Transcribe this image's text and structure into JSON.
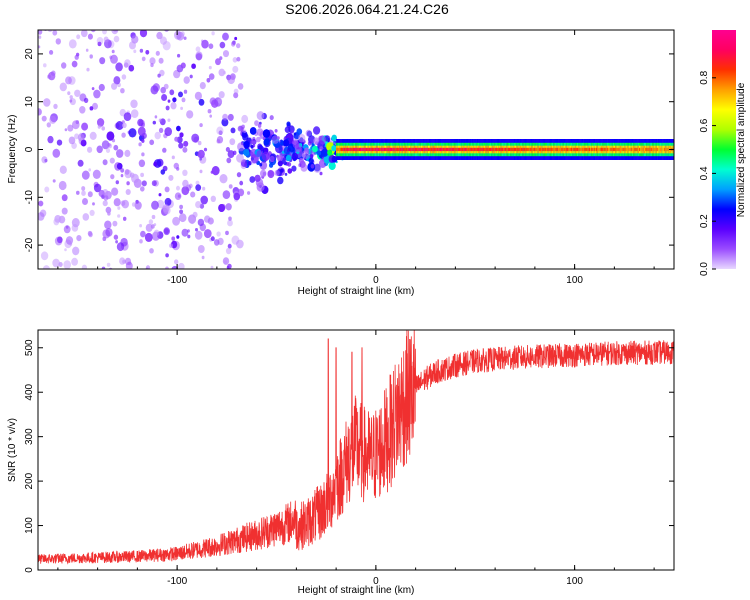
{
  "title": "S206.2026.064.21.24.C26",
  "chart_data": [
    {
      "type": "heatmap",
      "xlabel": "Height of straight line (km)",
      "ylabel": "Frequency (Hz)",
      "xlim": [
        -170,
        150
      ],
      "ylim": [
        -25,
        25
      ],
      "xticks": [
        -100,
        0,
        100
      ],
      "yticks": [
        -20,
        -10,
        0,
        10,
        20
      ],
      "colorbar": {
        "label": "Normalized spectral amplitude",
        "ticks": [
          0.0,
          0.2,
          0.4,
          0.6,
          0.8
        ],
        "range": [
          0,
          1
        ],
        "colors": [
          "#e8d8ff",
          "#9a4cff",
          "#5a00ff",
          "#0000ff",
          "#00a0ff",
          "#00ffd0",
          "#00ff30",
          "#b0ff00",
          "#ffff00",
          "#ffa000",
          "#ff3000",
          "#ff0060",
          "#ff0090"
        ]
      },
      "description_points": [
        {
          "x": -160,
          "scatter_hz": 25,
          "peak_amp": 0.15
        },
        {
          "x": -100,
          "scatter_hz": 14,
          "peak_amp": 0.3
        },
        {
          "x": -60,
          "scatter_hz": 9,
          "peak_amp": 0.35
        },
        {
          "x": -30,
          "scatter_hz": 5,
          "peak_amp": 0.45
        },
        {
          "x": -15,
          "scatter_hz": 1.5,
          "peak_amp": 0.95
        },
        {
          "x": 0,
          "scatter_hz": 1.5,
          "peak_amp": 0.95
        },
        {
          "x": 50,
          "scatter_hz": 1.2,
          "peak_amp": 0.9
        },
        {
          "x": 100,
          "scatter_hz": 1.2,
          "peak_amp": 0.85
        },
        {
          "x": 150,
          "scatter_hz": 1.2,
          "peak_amp": 0.8
        }
      ]
    },
    {
      "type": "line",
      "xlabel": "Height of straight line (km)",
      "ylabel": "SNR (10 * v/v)",
      "xlim": [
        -170,
        150
      ],
      "ylim": [
        0,
        540
      ],
      "xticks": [
        -100,
        0,
        100
      ],
      "yticks": [
        0,
        100,
        200,
        300,
        400,
        500
      ],
      "color": "#f03030",
      "trend": {
        "x": [
          -170,
          -120,
          -100,
          -80,
          -60,
          -45,
          -35,
          -28,
          -22,
          -18,
          -14,
          -10,
          -6,
          -2,
          2,
          6,
          10,
          14,
          20,
          25,
          30,
          40,
          50,
          70,
          90,
          120,
          150
        ],
        "y": [
          20,
          25,
          30,
          45,
          65,
          85,
          105,
          130,
          170,
          210,
          250,
          280,
          260,
          250,
          270,
          300,
          340,
          380,
          410,
          430,
          445,
          460,
          470,
          478,
          482,
          488,
          490
        ]
      },
      "spikes": [
        {
          "x": -24,
          "y": 520
        },
        {
          "x": -20,
          "y": 500
        },
        {
          "x": -12,
          "y": 490
        },
        {
          "x": -7,
          "y": 500
        }
      ]
    }
  ]
}
